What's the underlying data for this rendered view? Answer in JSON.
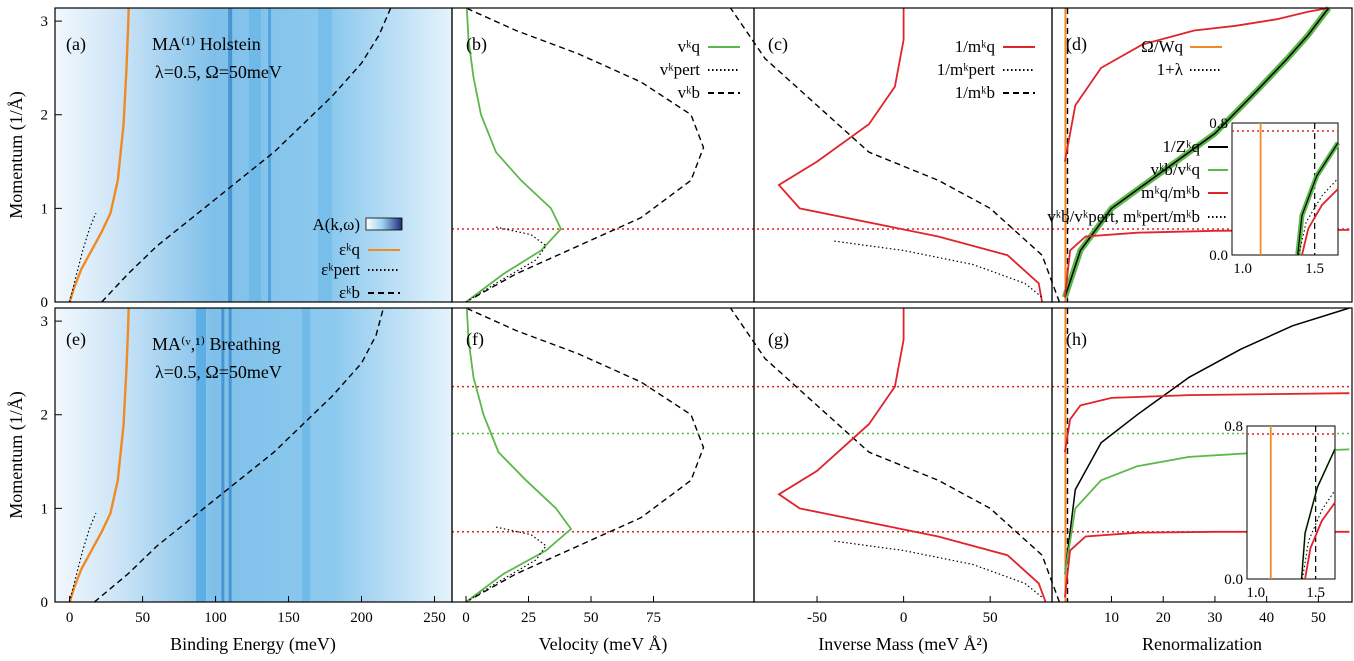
{
  "chart_data": {
    "type": "line",
    "axis_labels": {
      "y": "Momentum   (1/Å)",
      "x_binding": "Binding Energy   (meV)",
      "x_velocity": "Velocity   (meV Å)",
      "x_inverse_mass": "Inverse Mass   (meV Å²)",
      "x_renorm": "Renormalization"
    },
    "ylim": [
      0,
      3.14
    ],
    "yticks": [
      "0",
      "1",
      "2",
      "3"
    ],
    "xticks": {
      "binding": [
        "0",
        "50",
        "100",
        "150",
        "200",
        "250"
      ],
      "velocity": [
        "0",
        "25",
        "50",
        "75"
      ],
      "inverse_mass": [
        "-50",
        "0",
        "50"
      ],
      "renorm": [
        "10",
        "20",
        "30",
        "40",
        "50"
      ],
      "inset_x": [
        "1.0",
        "1.5"
      ],
      "inset_y": [
        "0.0",
        "0.8"
      ]
    },
    "panel_letters": [
      "(a)",
      "(b)",
      "(c)",
      "(d)",
      "(e)",
      "(f)",
      "(g)",
      "(h)"
    ],
    "annotations": {
      "model_a": "MA⁽¹⁾ Holstein",
      "model_e": "MA⁽ᵛ,¹⁾ Breathing",
      "params": "λ=0.5, Ω=50meV"
    },
    "legend_a": [
      "A(k,ω)",
      "εᵏq",
      "εᵏpert",
      "εᵏb"
    ],
    "legend_b": [
      "vᵏq",
      "vᵏpert",
      "vᵏb"
    ],
    "legend_c": [
      "1/mᵏq",
      "1/mᵏpert",
      "1/mᵏb"
    ],
    "legend_d_top": [
      "Ω/Wq",
      "1+λ"
    ],
    "legend_d_bottom": [
      "1/Zᵏq",
      "vᵏb/vᵏq",
      "mᵏq/mᵏb",
      "vᵏb/vᵏpert, mᵏpert/mᵏb"
    ],
    "colors": {
      "quasi": "#f08a24",
      "vel": "#5cb84a",
      "mass": "#e0242a",
      "ref": "#000000",
      "map": "#1e90d8"
    },
    "series": {
      "row1": {
        "dispersion_q": {
          "x": [
            0,
            3,
            8,
            15,
            22,
            28,
            33,
            37,
            39,
            40,
            40.5
          ],
          "y": [
            0,
            0.15,
            0.35,
            0.55,
            0.75,
            0.95,
            1.3,
            1.9,
            2.5,
            2.9,
            3.14
          ]
        },
        "dispersion_b": {
          "x": [
            22,
            40,
            60,
            80,
            100,
            120,
            140,
            160,
            180,
            200,
            212,
            220
          ],
          "y": [
            0,
            0.3,
            0.6,
            0.85,
            1.1,
            1.35,
            1.6,
            1.9,
            2.2,
            2.55,
            2.85,
            3.14
          ]
        },
        "velocity_q": {
          "x": [
            0,
            15,
            30,
            38,
            34,
            22,
            12,
            6,
            3,
            1,
            0.3
          ],
          "y": [
            0,
            0.3,
            0.55,
            0.78,
            1.0,
            1.3,
            1.6,
            2.0,
            2.4,
            2.8,
            3.14
          ]
        },
        "velocity_b": {
          "x": [
            0,
            20,
            45,
            70,
            90,
            95,
            90,
            70,
            45,
            20,
            0
          ],
          "y": [
            0,
            0.3,
            0.6,
            0.9,
            1.3,
            1.65,
            2.0,
            2.35,
            2.65,
            2.9,
            3.14
          ]
        },
        "inverse_mass_q": {
          "x": [
            80,
            78,
            60,
            20,
            -60,
            -72,
            -50,
            -20,
            -5,
            0,
            0
          ],
          "y": [
            0,
            0.2,
            0.5,
            0.7,
            1.0,
            1.25,
            1.5,
            1.9,
            2.3,
            2.8,
            3.14
          ]
        },
        "inverse_mass_b": {
          "x": [
            90,
            80,
            50,
            20,
            -20,
            -50,
            -80,
            -100
          ],
          "y": [
            0,
            0.5,
            1.0,
            1.3,
            1.6,
            2.1,
            2.6,
            3.14
          ]
        }
      },
      "row2": {
        "dispersion_q": {
          "x": [
            0,
            3,
            8,
            15,
            22,
            28,
            33,
            37,
            39,
            40,
            40.5
          ],
          "y": [
            0,
            0.15,
            0.35,
            0.55,
            0.75,
            0.95,
            1.3,
            1.9,
            2.5,
            2.9,
            3.14
          ]
        },
        "dispersion_b": {
          "x": [
            17,
            40,
            60,
            80,
            100,
            120,
            140,
            160,
            180,
            200,
            210,
            215
          ],
          "y": [
            0,
            0.3,
            0.6,
            0.85,
            1.1,
            1.35,
            1.6,
            1.9,
            2.2,
            2.55,
            2.85,
            3.14
          ]
        },
        "velocity_q": {
          "x": [
            0,
            15,
            32,
            42,
            36,
            24,
            13,
            7,
            3,
            1,
            0.3
          ],
          "y": [
            0,
            0.3,
            0.55,
            0.78,
            1.0,
            1.3,
            1.6,
            2.0,
            2.4,
            2.8,
            3.14
          ]
        },
        "velocity_b": {
          "x": [
            0,
            20,
            45,
            70,
            90,
            95,
            90,
            70,
            45,
            20,
            0
          ],
          "y": [
            0,
            0.3,
            0.6,
            0.9,
            1.3,
            1.65,
            2.0,
            2.35,
            2.65,
            2.9,
            3.14
          ]
        },
        "inverse_mass_q": {
          "x": [
            82,
            78,
            60,
            20,
            -60,
            -72,
            -50,
            -20,
            -5,
            0,
            0
          ],
          "y": [
            0,
            0.2,
            0.5,
            0.7,
            1.0,
            1.15,
            1.4,
            1.9,
            2.3,
            2.8,
            3.14
          ]
        },
        "inverse_mass_b": {
          "x": [
            90,
            80,
            50,
            20,
            -20,
            -50,
            -80,
            -100
          ],
          "y": [
            0,
            0.5,
            1.0,
            1.3,
            1.6,
            2.1,
            2.6,
            3.14
          ]
        }
      }
    },
    "reference_lines": {
      "row1": [
        0.78
      ],
      "row2": [
        0.75,
        1.8,
        2.3
      ]
    }
  }
}
